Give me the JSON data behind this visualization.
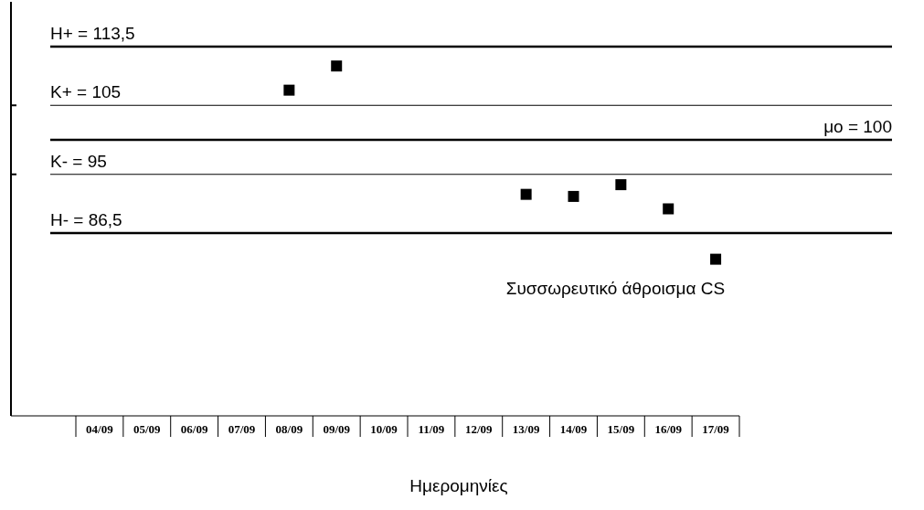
{
  "chart_data": {
    "type": "scatter",
    "xlabel": "Ημερομηνίες",
    "categories": [
      "04/09",
      "05/09",
      "06/09",
      "07/09",
      "08/09",
      "09/09",
      "10/09",
      "11/09",
      "12/09",
      "13/09",
      "14/09",
      "15/09",
      "16/09",
      "17/09"
    ],
    "series": [
      {
        "name": "Συσσωρευτικό άθροισμα CS",
        "color": "#000000",
        "values": [
          null,
          null,
          null,
          null,
          107.2,
          110.7,
          null,
          null,
          null,
          92.1,
          91.8,
          93.5,
          90.0,
          82.7
        ]
      }
    ],
    "ylim": [
      60,
      120
    ],
    "yticks": [
      {
        "value": 105,
        "label": null
      },
      {
        "value": 95,
        "label": null
      }
    ],
    "tick_labels": "x",
    "marker": "square",
    "grid": false,
    "legend": false,
    "ref_lines": [
      {
        "axis": "y",
        "value": 113.5,
        "label": "H+ = 113,5",
        "color": "#000000"
      },
      {
        "axis": "y",
        "value": 105,
        "label": "K+ = 105",
        "color": "#000000"
      },
      {
        "axis": "y",
        "value": 100,
        "label": "μο = 100",
        "color": "#000000"
      },
      {
        "axis": "y",
        "value": 95,
        "label": "K- = 95",
        "color": "#000000"
      },
      {
        "axis": "y",
        "value": 86.5,
        "label": "H- = 86,5",
        "color": "#000000"
      }
    ]
  }
}
